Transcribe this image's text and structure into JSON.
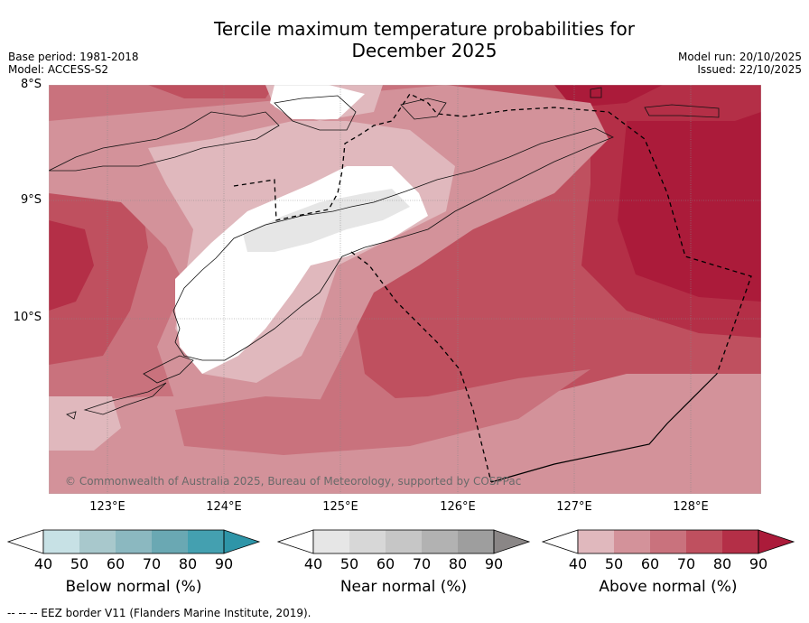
{
  "title_line1": "Tercile maximum temperature probabilities for",
  "title_line2": "December 2025",
  "meta": {
    "base_period": "Base period: 1981-2018",
    "model": "Model: ACCESS-S2",
    "model_run": "Model run: 20/10/2025",
    "issued": "Issued: 22/10/2025"
  },
  "latitudes": [
    "8°S",
    "9°S",
    "10°S"
  ],
  "longitudes": [
    "123°E",
    "124°E",
    "125°E",
    "126°E",
    "127°E",
    "128°E"
  ],
  "copyright": "© Commonwealth of Australia 2025, Bureau of Meteorology, supported by COSPPac",
  "footer": "--  --  -- EEZ border V11 (Flanders Marine Institute, 2019).",
  "colorbars": [
    {
      "name": "below",
      "title": "Below normal (%)",
      "ticks": [
        "40",
        "50",
        "60",
        "70",
        "80",
        "90"
      ],
      "colors": [
        "#c7e1e5",
        "#a8c8cc",
        "#8bb8c0",
        "#6aa8b3",
        "#44a0b0"
      ],
      "arrow": "#2e95a8"
    },
    {
      "name": "near",
      "title": "Near normal (%)",
      "ticks": [
        "40",
        "50",
        "60",
        "70",
        "80",
        "90"
      ],
      "colors": [
        "#e6e6e6",
        "#d7d7d7",
        "#c6c6c6",
        "#b2b2b2",
        "#9e9e9e"
      ],
      "arrow": "#8a8686"
    },
    {
      "name": "above",
      "title": "Above normal (%)",
      "ticks": [
        "40",
        "50",
        "60",
        "70",
        "80",
        "90"
      ],
      "colors": [
        "#e0b8bd",
        "#d3929a",
        "#c9727d",
        "#bf505f",
        "#b42f47"
      ],
      "arrow": "#ab1b3a"
    }
  ],
  "map_colors": {
    "white": "#ffffff",
    "near40": "#e6e6e6",
    "above40": "#e0b8bd",
    "above50": "#d3929a",
    "above60": "#c9727d",
    "above70": "#bf505f",
    "above80": "#b42f47",
    "above90": "#ab1b3a"
  }
}
